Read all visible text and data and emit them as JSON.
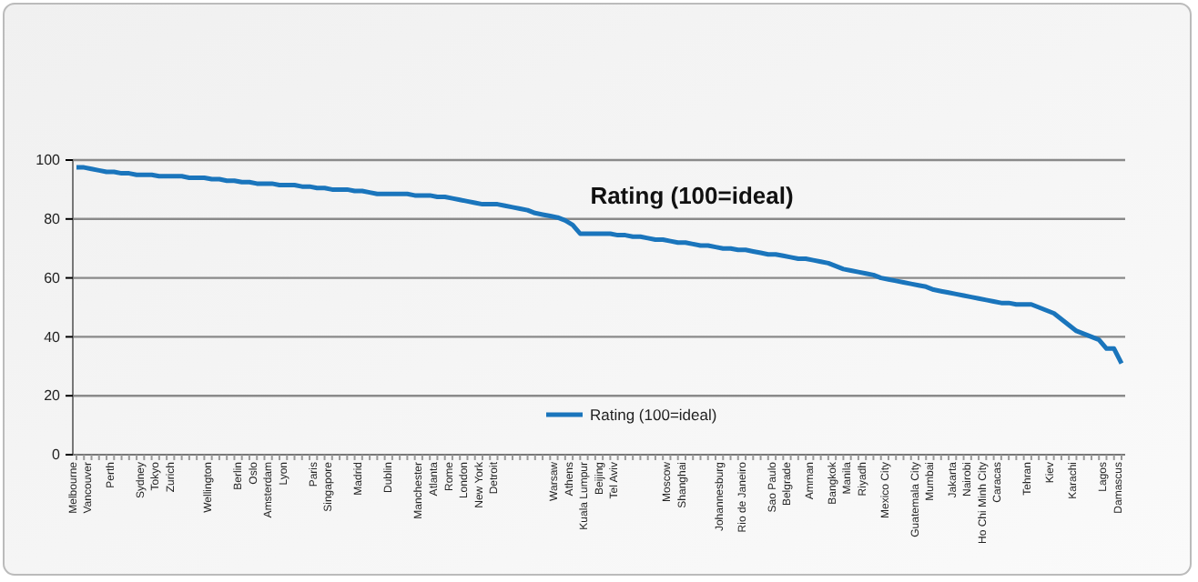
{
  "chart_data": {
    "type": "line",
    "title": "Rating (100=ideal)",
    "categories": [
      "Melbourne",
      null,
      "Vancouver",
      null,
      null,
      "Perth",
      null,
      null,
      null,
      "Sydney",
      null,
      "Tokyo",
      null,
      "Zurich",
      null,
      null,
      null,
      null,
      "Wellington",
      null,
      null,
      null,
      "Berlin",
      null,
      "Oslo",
      null,
      "Amsterdam",
      null,
      "Lyon",
      null,
      null,
      null,
      "Paris",
      null,
      "Singapore",
      null,
      null,
      null,
      "Madrid",
      null,
      null,
      null,
      "Dublin",
      null,
      null,
      null,
      "Manchester",
      null,
      "Atlanta",
      null,
      "Rome",
      null,
      "London",
      null,
      "New York",
      null,
      "Detroit",
      null,
      null,
      null,
      null,
      null,
      null,
      null,
      "Warsaw",
      null,
      "Athens",
      null,
      "Kuala Lumpur",
      null,
      "Beijing",
      null,
      "Tel Aviv",
      null,
      null,
      null,
      null,
      null,
      null,
      "Moscow",
      null,
      "Shanghai",
      null,
      null,
      null,
      null,
      "Johannesburg",
      null,
      null,
      "Rio de Janeiro",
      null,
      null,
      null,
      "Sao Paulo",
      null,
      "Belgrade",
      null,
      null,
      "Amman",
      null,
      null,
      "Bangkok",
      null,
      "Manila",
      null,
      "Riyadh",
      null,
      null,
      "Mexico City",
      null,
      null,
      null,
      "Guatemala City",
      null,
      "Mumbai",
      null,
      null,
      "Jakarta",
      null,
      "Nairobi",
      null,
      "Ho Chi Minh City",
      null,
      "Caracas",
      null,
      null,
      null,
      "Tehran",
      null,
      null,
      "Kiev",
      null,
      null,
      "Karachi",
      null,
      null,
      null,
      "Lagos",
      null,
      "Damascus"
    ],
    "series": [
      {
        "name": "Rating (100=ideal)",
        "color": "#1a75bc",
        "values": [
          97.5,
          97.5,
          97,
          96.5,
          96,
          96,
          95.5,
          95.5,
          95,
          95,
          95,
          94.5,
          94.5,
          94.5,
          94.5,
          94,
          94,
          94,
          93.5,
          93.5,
          93,
          93,
          92.5,
          92.5,
          92,
          92,
          92,
          91.5,
          91.5,
          91.5,
          91,
          91,
          90.5,
          90.5,
          90,
          90,
          90,
          89.5,
          89.5,
          89,
          88.5,
          88.5,
          88.5,
          88.5,
          88.5,
          88,
          88,
          88,
          87.5,
          87.5,
          87,
          86.5,
          86,
          85.5,
          85,
          85,
          85,
          84.5,
          84,
          83.5,
          83,
          82,
          81.5,
          81,
          80.5,
          79.5,
          78,
          75,
          75,
          75,
          75,
          75,
          74.5,
          74.5,
          74,
          74,
          73.5,
          73,
          73,
          72.5,
          72,
          72,
          71.5,
          71,
          71,
          70.5,
          70,
          70,
          69.5,
          69.5,
          69,
          68.5,
          68,
          68,
          67.5,
          67,
          66.5,
          66.5,
          66,
          65.5,
          65,
          64,
          63,
          62.5,
          62,
          61.5,
          61,
          60,
          59.5,
          59,
          58.5,
          58,
          57.5,
          57,
          56,
          55.5,
          55,
          54.5,
          54,
          53.5,
          53,
          52.5,
          52,
          51.5,
          51.5,
          51,
          51,
          51,
          50,
          49,
          48,
          46,
          44,
          42,
          41,
          40,
          39,
          36,
          36,
          31
        ]
      }
    ],
    "ylim": [
      0,
      100
    ],
    "yticks": [
      0,
      20,
      40,
      60,
      80,
      100
    ],
    "grid": "y",
    "legend": "bottom",
    "marker": "none",
    "line_style": "solid"
  }
}
